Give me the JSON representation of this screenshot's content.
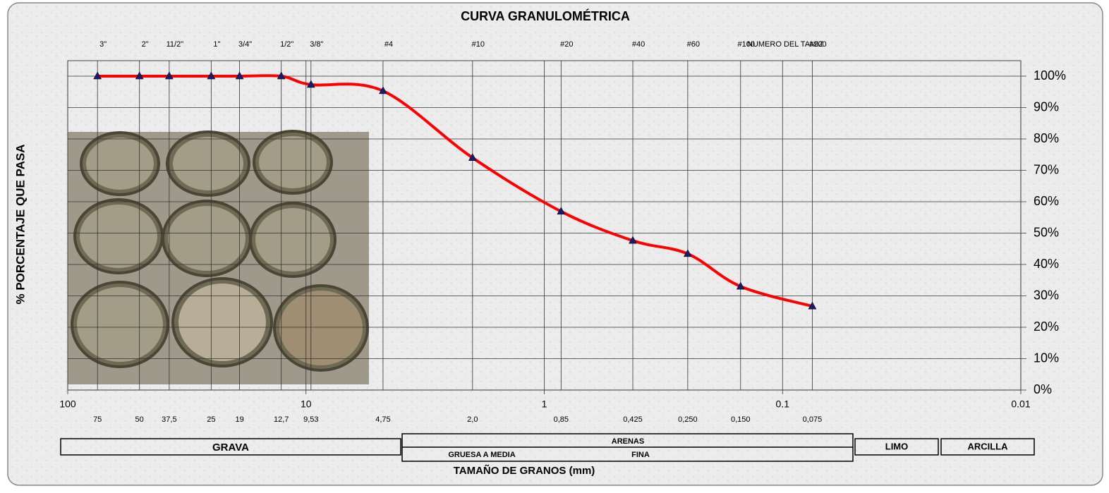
{
  "chart_data": {
    "type": "line",
    "title": "CURVA GRANULOMÉTRICA",
    "x_label": "TAMAÑO DE GRANOS (mm)",
    "y_label": "% PORCENTAJE QUE PASA",
    "log_x": true,
    "grid": true,
    "xlim": [
      100,
      0.01
    ],
    "xticks": [
      100,
      10,
      1,
      0.1,
      0.01
    ],
    "ylim": [
      0,
      100
    ],
    "yticks": [
      {
        "value": 0,
        "label": "0%"
      },
      {
        "value": 10,
        "label": "10%"
      },
      {
        "value": 20,
        "label": "20%"
      },
      {
        "value": 30,
        "label": "30%"
      },
      {
        "value": 40,
        "label": "40%"
      },
      {
        "value": 50,
        "label": "50%"
      },
      {
        "value": 60,
        "label": "60%"
      },
      {
        "value": 70,
        "label": "70%"
      },
      {
        "value": 80,
        "label": "80%"
      },
      {
        "value": 90,
        "label": "90%"
      },
      {
        "value": 100,
        "label": "100%"
      }
    ],
    "sieve_header": "NUMERO DEL TAMIZ",
    "sieves": [
      "3\"",
      "2\"",
      "11/2\"",
      "1\"",
      "3/4\"",
      "1/2\"",
      "3/8\"",
      "#4",
      "#10",
      "#20",
      "#40",
      "#60",
      "#100",
      "#200"
    ],
    "x": [
      75,
      50,
      37.5,
      25,
      19,
      12.7,
      9.53,
      4.75,
      2.0,
      0.85,
      0.425,
      0.25,
      0.15,
      0.075
    ],
    "x_labels": [
      "75",
      "50",
      "37,5",
      "25",
      "19",
      "12,7",
      "9,53",
      "4,75",
      "2,0",
      "0,85",
      "0,425",
      "0,250",
      "0,150",
      "0,075"
    ],
    "series": [
      {
        "color": "#ff0000",
        "marker_color": "#1a1a6e",
        "values": [
          100,
          100,
          100,
          100,
          100,
          100,
          97.3,
          95.3,
          74,
          56.9,
          47.6,
          43.4,
          33,
          26.7
        ]
      }
    ],
    "soil_classes": {
      "gravel": "GRAVA",
      "sand": "ARENAS",
      "sand_coarse": "GRUESA A MEDIA",
      "sand_fine": "FINA",
      "silt": "LIMO",
      "clay": "ARCILLA"
    }
  }
}
